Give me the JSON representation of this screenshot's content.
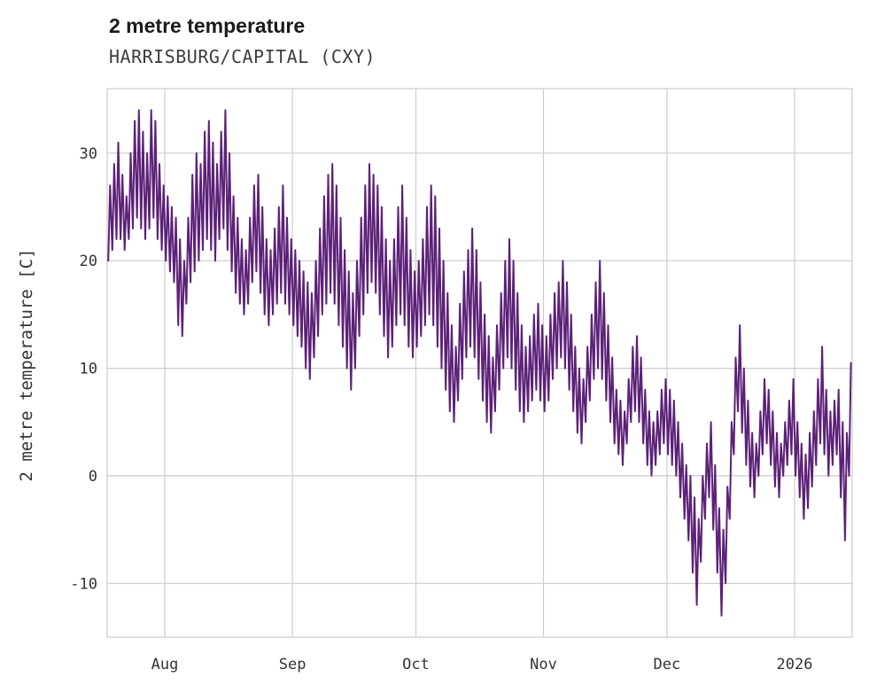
{
  "chart_data": {
    "type": "line",
    "title": "2 metre temperature",
    "subtitle": "HARRISBURG/CAPITAL (CXY)",
    "xlabel": "",
    "ylabel": "2 metre temperature [C]",
    "ylim": [
      -15,
      36
    ],
    "yticks": [
      -10,
      0,
      10,
      20,
      30
    ],
    "xticks": [
      {
        "day": 14,
        "label": "Aug"
      },
      {
        "day": 45,
        "label": "Sep"
      },
      {
        "day": 75,
        "label": "Oct"
      },
      {
        "day": 106,
        "label": "Nov"
      },
      {
        "day": 136,
        "label": "Dec"
      },
      {
        "day": 167,
        "label": "2026"
      }
    ],
    "x_span_days": 181,
    "grid": true,
    "grid_color": "#cccccc",
    "background": "#ffffff",
    "line_color": "#5c2178",
    "legend": "none",
    "series": [
      {
        "name": "2 metre temperature",
        "units": "C",
        "daily_min": [
          20,
          21,
          22,
          22,
          21,
          22,
          23,
          24,
          23,
          22,
          23,
          24,
          22,
          21,
          20,
          19,
          18,
          14,
          13,
          16,
          18,
          19,
          20,
          21,
          22,
          21,
          20,
          22,
          23,
          21,
          19,
          17,
          16,
          15,
          16,
          18,
          19,
          17,
          15,
          14,
          15,
          16,
          17,
          16,
          15,
          14,
          13,
          12,
          10,
          9,
          11,
          13,
          15,
          16,
          17,
          16,
          14,
          12,
          10,
          8,
          10,
          13,
          15,
          17,
          18,
          17,
          15,
          13,
          11,
          12,
          14,
          15,
          14,
          12,
          11,
          12,
          13,
          14,
          15,
          14,
          12,
          10,
          8,
          6,
          5,
          7,
          9,
          11,
          12,
          11,
          9,
          7,
          5,
          4,
          6,
          8,
          10,
          11,
          10,
          8,
          6,
          5,
          6,
          7,
          8,
          7,
          6,
          7,
          9,
          10,
          11,
          10,
          8,
          6,
          4,
          3,
          5,
          7,
          9,
          10,
          9,
          7,
          5,
          3,
          2,
          1,
          3,
          5,
          6,
          5,
          3,
          1,
          0,
          1,
          2,
          3,
          2,
          1,
          0,
          -2,
          -4,
          -6,
          -9,
          -12,
          -8,
          -4,
          -2,
          -5,
          -9,
          -13,
          -10,
          -4,
          2,
          6,
          4,
          1,
          -1,
          -2,
          0,
          2,
          3,
          1,
          -1,
          -2,
          0,
          1,
          2,
          0,
          -2,
          -4,
          -3,
          -1,
          1,
          3,
          2,
          0,
          1,
          2,
          -2,
          -6,
          0
        ],
        "daily_max": [
          27,
          29,
          31,
          28,
          26,
          30,
          33,
          34,
          32,
          30,
          34,
          33,
          29,
          27,
          26,
          25,
          24,
          22,
          20,
          24,
          28,
          30,
          29,
          32,
          33,
          31,
          29,
          32,
          34,
          30,
          26,
          24,
          22,
          21,
          24,
          27,
          28,
          25,
          22,
          21,
          23,
          25,
          27,
          24,
          22,
          21,
          20,
          19,
          18,
          17,
          20,
          23,
          26,
          28,
          29,
          27,
          24,
          21,
          19,
          17,
          20,
          24,
          27,
          29,
          28,
          27,
          25,
          22,
          20,
          22,
          25,
          27,
          24,
          21,
          19,
          20,
          22,
          25,
          27,
          26,
          23,
          20,
          17,
          14,
          12,
          16,
          19,
          21,
          23,
          21,
          18,
          15,
          13,
          11,
          14,
          17,
          20,
          22,
          20,
          17,
          14,
          12,
          13,
          15,
          16,
          14,
          13,
          15,
          17,
          18,
          20,
          18,
          15,
          12,
          10,
          9,
          12,
          15,
          18,
          20,
          17,
          14,
          11,
          8,
          7,
          6,
          9,
          12,
          13,
          11,
          8,
          6,
          5,
          6,
          8,
          9,
          8,
          7,
          5,
          3,
          1,
          0,
          -2,
          -4,
          0,
          3,
          5,
          1,
          -3,
          -5,
          -1,
          5,
          11,
          14,
          10,
          7,
          4,
          3,
          6,
          9,
          8,
          6,
          4,
          3,
          5,
          7,
          9,
          5,
          3,
          2,
          4,
          6,
          9,
          12,
          8,
          6,
          7,
          8,
          5,
          4,
          10.5
        ]
      }
    ]
  }
}
